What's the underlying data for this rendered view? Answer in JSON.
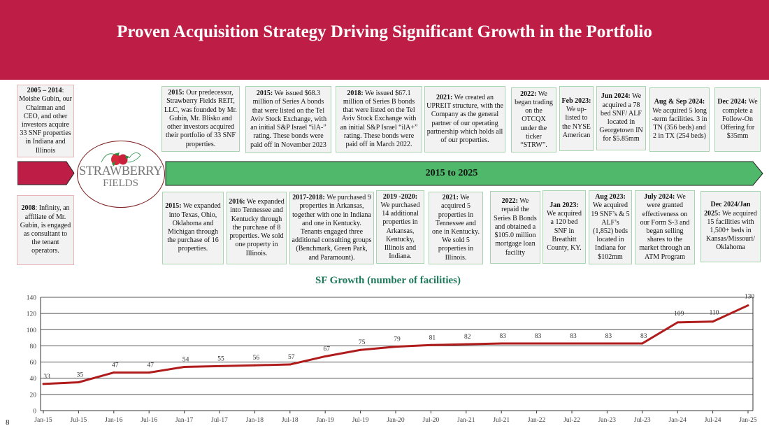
{
  "header": {
    "title": "Proven Acquisition Strategy Driving Significant Growth in the Portfolio"
  },
  "logo": {
    "line1": "STRAWBERRY",
    "line2": "FIELDS"
  },
  "timeline": {
    "label": "2015 to 2025",
    "pre_top": {
      "title": "2005 – 2014",
      "text": "Moishe Gubin, our Chairman and CEO, and other investors acquire 33 SNF properties in Indiana and Illinois"
    },
    "pre_bottom": {
      "title": "2008",
      "text": "Infinity, an affiliate of Mr. Gubin, is engaged as consultant to the tenant operators."
    },
    "top": [
      {
        "title": "2015:",
        "text": "Our predecessor, Strawberry Fields REIT, LLC, was founded by Mr. Gubin, Mr. Blisko and other investors acquired their portfolio of 33 SNF properties."
      },
      {
        "title": "2015:",
        "text": "We issued $68.3 million of Series A bonds that were listed on the Tel Aviv Stock Exchange, with an initial S&P Israel “ilA-” rating. These bonds were paid off in November 2023"
      },
      {
        "title": "2018:",
        "text": "We issued $67.1 million of Series B bonds that were listed on the Tel Aviv Stock Exchange with an initial S&P Israel “ilA+” rating. These bonds were paid off in March 2022."
      },
      {
        "title": "2021:",
        "text": "We created  an UPREIT structure, with the Company as the general partner of our operating partnership which holds all of our properties."
      },
      {
        "title": "2022:",
        "text": "We began trading on the OTCQX under the ticker “STRW”."
      },
      {
        "title": "Feb 2023:",
        "text": "We up-listed to the NYSE American"
      },
      {
        "title": "Jun 2024:",
        "text": "We acquired a 78 bed SNF/ ALF located in Georgetown IN for $5.85mm"
      },
      {
        "title": "Aug & Sep 2024:",
        "text": "We acquired 5 long -term facilities. 3 in TN (356 beds) and 2 in TX (254 beds)"
      },
      {
        "title": "Dec 2024:",
        "text": "We complete a Follow-On Offering for $35mm"
      }
    ],
    "bottom": [
      {
        "title": "2015:",
        "text": "We expanded into Texas, Ohio, Oklahoma and Michigan through the purchase of 16 properties."
      },
      {
        "title": "2016:",
        "text": "We expanded into Tennessee and Kentucky through the purchase of  8 properties. We sold one property in Illinois."
      },
      {
        "title": "2017-2018:",
        "text": "We purchased 9 properties in Arkansas, together with one in Indiana and one in Kentucky. Tenants engaged three additional consulting groups (Benchmark, Green Park, and Paramount)."
      },
      {
        "title": "2019 -2020:",
        "text": "We purchased 14 additional properties  in Arkansas, Kentucky, Illinois and Indiana."
      },
      {
        "title": "2021:",
        "text": "We acquired 5 properties in Tennessee and one in Kentucky. We sold 5 properties in Illinois."
      },
      {
        "title": "2022:",
        "text": "We repaid the Series B Bonds and obtained a $105.0 million mortgage loan facility"
      },
      {
        "title": "Jan 2023:",
        "text": "We acquired a 120 bed SNF in Breathitt County, KY."
      },
      {
        "title": "Aug 2023:",
        "text": "We acquired 19 SNF’s & 5 ALF’s (1,852) beds located in Indiana for $102mm"
      },
      {
        "title": "July 2024:",
        "text": "We were granted effectiveness on our Form S-3 and began selling shares to the market through an ATM Program"
      },
      {
        "title": "Dec 2024/Jan 2025:",
        "text": "We acquired 15 facilities with 1,500+ beds in Kansas/Missouri/ Oklahoma"
      }
    ]
  },
  "page_number": "8",
  "colors": {
    "brand_red": "#be1e45",
    "line": "#b01c1c",
    "arrow_green": "#4fb86a",
    "title_green": "#1e7a5a"
  },
  "chart_data": {
    "type": "line",
    "title": "SF Growth (number of facilities)",
    "xlabel": "",
    "ylabel": "",
    "categories": [
      "Jan-15",
      "Jul-15",
      "Jan-16",
      "Jul-16",
      "Jan-17",
      "Jul-17",
      "Jan-18",
      "Jul-18",
      "Jan-19",
      "Jul-19",
      "Jan-20",
      "Jul-20",
      "Jan-21",
      "Jul-21",
      "Jan-22",
      "Jul-22",
      "Jan-23",
      "Jul-23",
      "Jan-24",
      "Jul-24",
      "Jan-25"
    ],
    "series": [
      {
        "name": "Facilities",
        "values": [
          33,
          35,
          47,
          47,
          54,
          55,
          56,
          57,
          67,
          75,
          79,
          81,
          82,
          83,
          83,
          83,
          83,
          83,
          109,
          110,
          130
        ]
      }
    ],
    "ylim": [
      0,
      140
    ],
    "yticks": [
      0,
      20,
      40,
      60,
      80,
      100,
      120,
      140
    ],
    "grid": true,
    "legend": "none",
    "data_labels": true
  }
}
